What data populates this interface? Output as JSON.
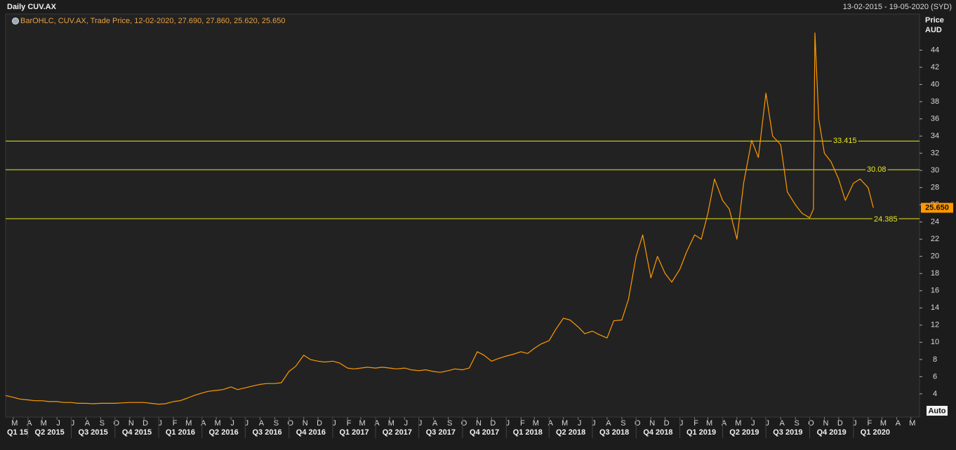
{
  "chart_data": {
    "type": "line",
    "title": "Daily CUV.AX",
    "date_range": "13-02-2015 - 19-05-2020 (SYD)",
    "legend": "BarOHLC, CUV.AX, Trade Price, 12-02-2020, 27.690, 27.860, 25.620, 25.650",
    "y_axis_label": "Price",
    "y_axis_unit": "AUD",
    "scale_button": "Auto",
    "xlim": [
      "2015-02-13",
      "2020-05-19"
    ],
    "ylim": [
      1.3,
      48.2
    ],
    "yticks": [
      4,
      6,
      8,
      10,
      12,
      14,
      16,
      18,
      20,
      22,
      24,
      26,
      28,
      30,
      32,
      34,
      36,
      38,
      40,
      42,
      44
    ],
    "last_price": {
      "value": 25.65,
      "label": "25.650"
    },
    "hlines": [
      33.415,
      30.08,
      24.385
    ],
    "hline_color": "#e8e820",
    "xticks": [
      {
        "value": "2015-03-01",
        "label": "M"
      },
      {
        "value": "2015-04-01",
        "label": "A"
      },
      {
        "value": "2015-05-01",
        "label": "M"
      },
      {
        "value": "2015-06-01",
        "label": "J"
      },
      {
        "value": "2015-07-01",
        "label": "J"
      },
      {
        "value": "2015-08-01",
        "label": "A"
      },
      {
        "value": "2015-09-01",
        "label": "S"
      },
      {
        "value": "2015-10-01",
        "label": "O"
      },
      {
        "value": "2015-11-01",
        "label": "N"
      },
      {
        "value": "2015-12-01",
        "label": "D"
      },
      {
        "value": "2016-01-01",
        "label": "J"
      },
      {
        "value": "2016-02-01",
        "label": "F"
      },
      {
        "value": "2016-03-01",
        "label": "M"
      },
      {
        "value": "2016-04-01",
        "label": "A"
      },
      {
        "value": "2016-05-01",
        "label": "M"
      },
      {
        "value": "2016-06-01",
        "label": "J"
      },
      {
        "value": "2016-07-01",
        "label": "J"
      },
      {
        "value": "2016-08-01",
        "label": "A"
      },
      {
        "value": "2016-09-01",
        "label": "S"
      },
      {
        "value": "2016-10-01",
        "label": "O"
      },
      {
        "value": "2016-11-01",
        "label": "N"
      },
      {
        "value": "2016-12-01",
        "label": "D"
      },
      {
        "value": "2017-01-01",
        "label": "J"
      },
      {
        "value": "2017-02-01",
        "label": "F"
      },
      {
        "value": "2017-03-01",
        "label": "M"
      },
      {
        "value": "2017-04-01",
        "label": "A"
      },
      {
        "value": "2017-05-01",
        "label": "M"
      },
      {
        "value": "2017-06-01",
        "label": "J"
      },
      {
        "value": "2017-07-01",
        "label": "J"
      },
      {
        "value": "2017-08-01",
        "label": "A"
      },
      {
        "value": "2017-09-01",
        "label": "S"
      },
      {
        "value": "2017-10-01",
        "label": "O"
      },
      {
        "value": "2017-11-01",
        "label": "N"
      },
      {
        "value": "2017-12-01",
        "label": "D"
      },
      {
        "value": "2018-01-01",
        "label": "J"
      },
      {
        "value": "2018-02-01",
        "label": "F"
      },
      {
        "value": "2018-03-01",
        "label": "M"
      },
      {
        "value": "2018-04-01",
        "label": "A"
      },
      {
        "value": "2018-05-01",
        "label": "M"
      },
      {
        "value": "2018-06-01",
        "label": "J"
      },
      {
        "value": "2018-07-01",
        "label": "J"
      },
      {
        "value": "2018-08-01",
        "label": "A"
      },
      {
        "value": "2018-09-01",
        "label": "S"
      },
      {
        "value": "2018-10-01",
        "label": "O"
      },
      {
        "value": "2018-11-01",
        "label": "N"
      },
      {
        "value": "2018-12-01",
        "label": "D"
      },
      {
        "value": "2019-01-01",
        "label": "J"
      },
      {
        "value": "2019-02-01",
        "label": "F"
      },
      {
        "value": "2019-03-01",
        "label": "M"
      },
      {
        "value": "2019-04-01",
        "label": "A"
      },
      {
        "value": "2019-05-01",
        "label": "M"
      },
      {
        "value": "2019-06-01",
        "label": "J"
      },
      {
        "value": "2019-07-01",
        "label": "J"
      },
      {
        "value": "2019-08-01",
        "label": "A"
      },
      {
        "value": "2019-09-01",
        "label": "S"
      },
      {
        "value": "2019-10-01",
        "label": "O"
      },
      {
        "value": "2019-11-01",
        "label": "N"
      },
      {
        "value": "2019-12-01",
        "label": "D"
      },
      {
        "value": "2020-01-01",
        "label": "J"
      },
      {
        "value": "2020-02-01",
        "label": "F"
      },
      {
        "value": "2020-03-01",
        "label": "M"
      },
      {
        "value": "2020-04-01",
        "label": "A"
      },
      {
        "value": "2020-05-01",
        "label": "M"
      }
    ],
    "quarter_ticks": [
      {
        "value": "2015-01-01",
        "label": "Q1 15"
      },
      {
        "value": "2015-04-01",
        "label": "Q2 2015"
      },
      {
        "value": "2015-07-01",
        "label": "Q3 2015"
      },
      {
        "value": "2015-10-01",
        "label": "Q4 2015"
      },
      {
        "value": "2016-01-01",
        "label": "Q1 2016"
      },
      {
        "value": "2016-04-01",
        "label": "Q2 2016"
      },
      {
        "value": "2016-07-01",
        "label": "Q3 2016"
      },
      {
        "value": "2016-10-01",
        "label": "Q4 2016"
      },
      {
        "value": "2017-01-01",
        "label": "Q1 2017"
      },
      {
        "value": "2017-04-01",
        "label": "Q2 2017"
      },
      {
        "value": "2017-07-01",
        "label": "Q3 2017"
      },
      {
        "value": "2017-10-01",
        "label": "Q4 2017"
      },
      {
        "value": "2018-01-01",
        "label": "Q1 2018"
      },
      {
        "value": "2018-04-01",
        "label": "Q2 2018"
      },
      {
        "value": "2018-07-01",
        "label": "Q3 2018"
      },
      {
        "value": "2018-10-01",
        "label": "Q4 2018"
      },
      {
        "value": "2019-01-01",
        "label": "Q1 2019"
      },
      {
        "value": "2019-04-01",
        "label": "Q2 2019"
      },
      {
        "value": "2019-07-01",
        "label": "Q3 2019"
      },
      {
        "value": "2019-10-01",
        "label": "Q4 2019"
      },
      {
        "value": "2020-01-01",
        "label": "Q1 2020"
      }
    ],
    "series": [
      {
        "color": "#ff9900",
        "x": [
          "2015-02-13",
          "2015-03-01",
          "2015-03-15",
          "2015-04-01",
          "2015-04-15",
          "2015-05-01",
          "2015-05-15",
          "2015-06-01",
          "2015-06-15",
          "2015-07-01",
          "2015-07-15",
          "2015-08-01",
          "2015-08-15",
          "2015-09-01",
          "2015-09-15",
          "2015-10-01",
          "2015-10-15",
          "2015-11-01",
          "2015-11-15",
          "2015-12-01",
          "2015-12-15",
          "2016-01-01",
          "2016-01-15",
          "2016-02-01",
          "2016-02-15",
          "2016-03-01",
          "2016-03-15",
          "2016-04-01",
          "2016-04-15",
          "2016-05-01",
          "2016-05-15",
          "2016-06-01",
          "2016-06-15",
          "2016-07-01",
          "2016-07-15",
          "2016-08-01",
          "2016-08-15",
          "2016-09-01",
          "2016-09-15",
          "2016-10-01",
          "2016-10-15",
          "2016-11-01",
          "2016-11-15",
          "2016-12-01",
          "2016-12-15",
          "2017-01-01",
          "2017-01-15",
          "2017-02-01",
          "2017-02-15",
          "2017-03-01",
          "2017-03-15",
          "2017-04-01",
          "2017-04-15",
          "2017-05-01",
          "2017-05-15",
          "2017-06-01",
          "2017-06-15",
          "2017-07-01",
          "2017-07-15",
          "2017-08-01",
          "2017-08-15",
          "2017-09-01",
          "2017-09-15",
          "2017-10-01",
          "2017-10-15",
          "2017-11-01",
          "2017-11-15",
          "2017-12-01",
          "2017-12-15",
          "2018-01-01",
          "2018-01-15",
          "2018-02-01",
          "2018-02-15",
          "2018-03-01",
          "2018-03-15",
          "2018-04-01",
          "2018-04-15",
          "2018-05-01",
          "2018-05-15",
          "2018-06-01",
          "2018-06-15",
          "2018-07-01",
          "2018-07-15",
          "2018-08-01",
          "2018-08-15",
          "2018-09-01",
          "2018-09-15",
          "2018-10-01",
          "2018-10-15",
          "2018-11-01",
          "2018-11-15",
          "2018-12-01",
          "2018-12-15",
          "2019-01-01",
          "2019-01-15",
          "2019-02-01",
          "2019-02-15",
          "2019-03-01",
          "2019-03-15",
          "2019-04-01",
          "2019-04-15",
          "2019-05-01",
          "2019-05-15",
          "2019-06-01",
          "2019-06-15",
          "2019-07-01",
          "2019-07-15",
          "2019-08-01",
          "2019-08-15",
          "2019-09-01",
          "2019-09-15",
          "2019-10-01",
          "2019-10-09",
          "2019-10-12",
          "2019-10-20",
          "2019-11-01",
          "2019-11-15",
          "2019-12-01",
          "2019-12-15",
          "2020-01-01",
          "2020-01-15",
          "2020-02-01",
          "2020-02-12"
        ],
        "values": [
          3.8,
          3.6,
          3.4,
          3.3,
          3.2,
          3.2,
          3.1,
          3.1,
          3.0,
          3.0,
          2.9,
          2.9,
          2.85,
          2.9,
          2.9,
          2.9,
          2.95,
          3.0,
          3.0,
          3.0,
          2.9,
          2.8,
          2.85,
          3.1,
          3.2,
          3.5,
          3.8,
          4.1,
          4.3,
          4.4,
          4.5,
          4.8,
          4.5,
          4.7,
          4.9,
          5.1,
          5.2,
          5.2,
          5.3,
          6.6,
          7.2,
          8.5,
          8.0,
          7.8,
          7.7,
          7.8,
          7.6,
          7.0,
          6.9,
          7.0,
          7.1,
          7.0,
          7.1,
          7.0,
          6.9,
          7.0,
          6.8,
          6.7,
          6.8,
          6.6,
          6.5,
          6.7,
          6.9,
          6.8,
          7.0,
          8.9,
          8.5,
          7.8,
          8.1,
          8.4,
          8.6,
          8.9,
          8.7,
          9.3,
          9.8,
          10.2,
          11.5,
          12.8,
          12.6,
          11.8,
          11.0,
          11.3,
          10.9,
          10.5,
          12.5,
          12.6,
          15.0,
          20.0,
          22.5,
          17.5,
          20.0,
          18.0,
          17.0,
          18.5,
          20.5,
          22.5,
          22.0,
          25.0,
          29.0,
          26.5,
          25.5,
          22.0,
          28.5,
          33.5,
          31.5,
          39.0,
          34.0,
          33.0,
          27.5,
          26.0,
          25.0,
          24.5,
          25.5,
          46.0,
          36.0,
          32.0,
          31.0,
          29.0,
          26.5,
          28.5,
          29.0,
          28.0,
          25.65
        ]
      }
    ]
  }
}
